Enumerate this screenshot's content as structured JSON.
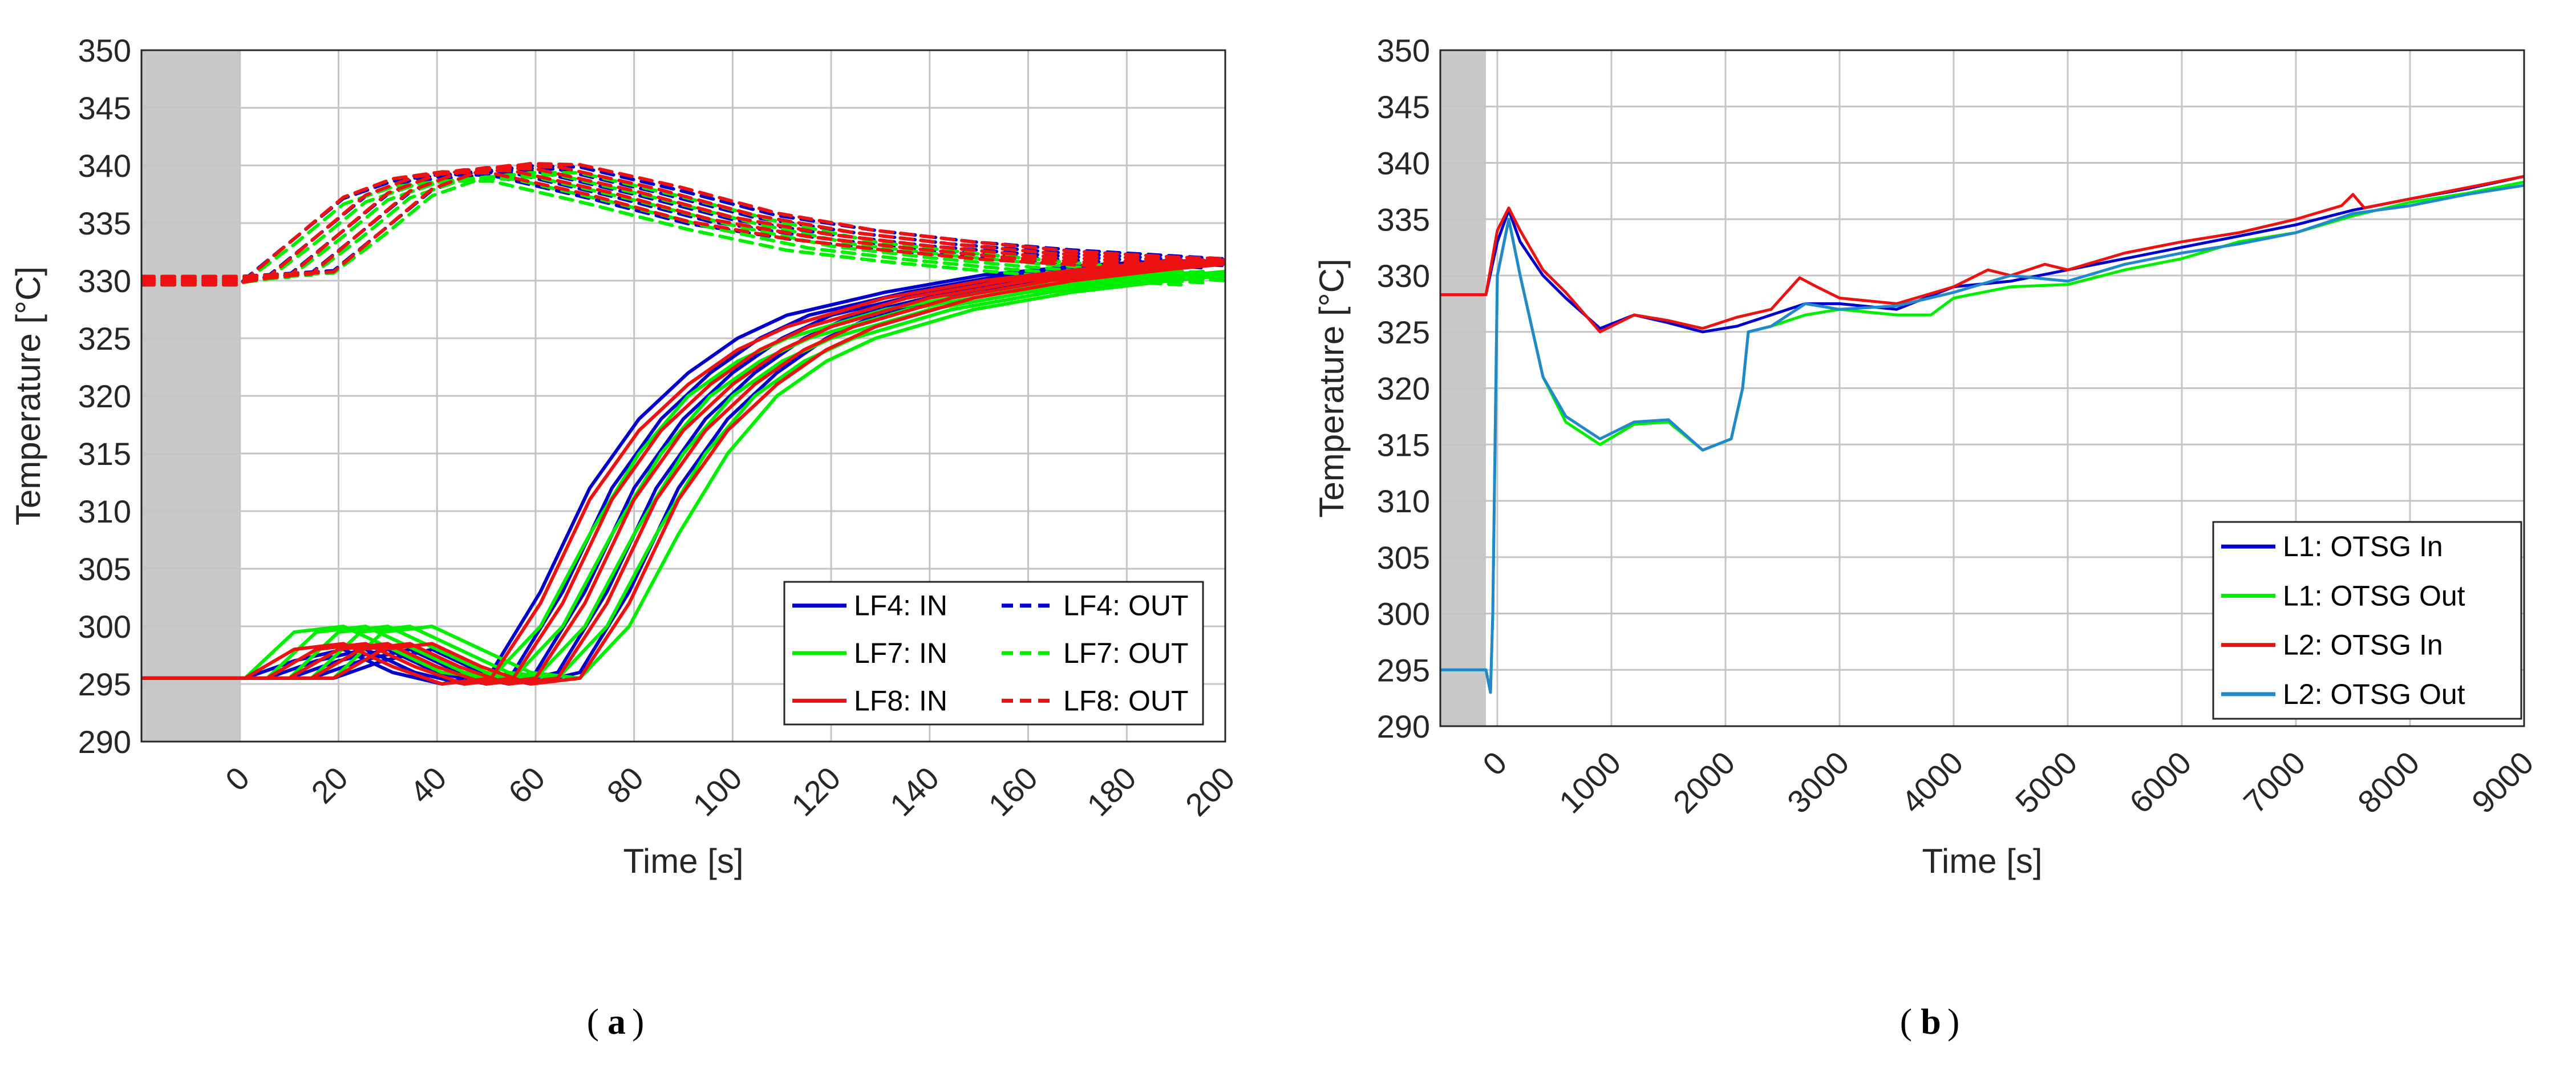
{
  "chart_data": [
    {
      "type": "line",
      "caption": "a",
      "xlabel": "Time [s]",
      "ylabel": "Temperature [°C]",
      "xlim": [
        -20,
        200
      ],
      "ylim": [
        290,
        350
      ],
      "xticks": [
        0,
        20,
        40,
        60,
        80,
        100,
        120,
        140,
        160,
        180,
        200
      ],
      "yticks": [
        290,
        295,
        300,
        305,
        310,
        315,
        320,
        325,
        330,
        335,
        340,
        345,
        350
      ],
      "shaded_region": [
        -20,
        0
      ],
      "grid": true,
      "legend_position": "bottom-right",
      "legend_layout": "two-columns",
      "series": [
        {
          "name": "LF4: IN",
          "color": "#0000cc",
          "dash": "solid",
          "x": [
            -20,
            0,
            10,
            20,
            30,
            40,
            50,
            60,
            70,
            80,
            90,
            100,
            110,
            120,
            140,
            160,
            180,
            200
          ],
          "y": [
            295.5,
            295.5,
            295.5,
            297,
            298,
            296,
            295,
            296,
            303,
            312,
            318,
            322,
            325,
            327,
            329,
            330.5,
            331.3,
            331.8
          ]
        },
        {
          "name": "LF4: OUT",
          "color": "#0000cc",
          "dash": "dashed",
          "x": [
            -20,
            0,
            10,
            20,
            30,
            40,
            50,
            60,
            80,
            100,
            120,
            140,
            160,
            180,
            200
          ],
          "y": [
            330,
            330,
            330.5,
            334,
            337.5,
            339,
            339.6,
            339.5,
            337.5,
            335.3,
            334,
            333,
            332.3,
            331.8,
            331.3
          ]
        },
        {
          "name": "LF7: IN",
          "color": "#00ee00",
          "dash": "solid",
          "x": [
            -20,
            0,
            10,
            20,
            30,
            40,
            50,
            60,
            70,
            80,
            90,
            100,
            110,
            120,
            140,
            160,
            180,
            200
          ],
          "y": [
            295.5,
            295.5,
            295.5,
            299.5,
            300,
            298,
            296,
            295.5,
            300,
            308,
            315,
            320,
            323,
            325,
            327.5,
            329,
            330,
            330.8
          ]
        },
        {
          "name": "LF7: OUT",
          "color": "#00ee00",
          "dash": "dashed",
          "x": [
            -20,
            0,
            10,
            20,
            30,
            40,
            50,
            60,
            80,
            100,
            120,
            140,
            160,
            180,
            200
          ],
          "y": [
            330,
            330,
            330.3,
            333.5,
            337,
            338.5,
            339,
            339,
            337,
            334.8,
            333,
            332,
            331.2,
            330.5,
            330
          ]
        },
        {
          "name": "LF8: IN",
          "color": "#ee1111",
          "dash": "solid",
          "x": [
            -20,
            0,
            10,
            20,
            30,
            40,
            50,
            60,
            70,
            80,
            90,
            100,
            110,
            120,
            140,
            160,
            180,
            200
          ],
          "y": [
            295.5,
            295.5,
            295.5,
            298,
            298.5,
            296.5,
            295,
            295.5,
            302,
            311,
            317,
            321,
            324,
            326,
            328.5,
            330,
            331,
            331.8
          ]
        },
        {
          "name": "LF8: OUT",
          "color": "#ee1111",
          "dash": "dashed",
          "x": [
            -20,
            0,
            10,
            20,
            30,
            40,
            50,
            60,
            80,
            100,
            120,
            140,
            160,
            180,
            200
          ],
          "y": [
            330,
            330,
            330.4,
            334,
            337.6,
            339.2,
            339.8,
            339.7,
            337.8,
            335.5,
            334,
            333,
            332.2,
            331.7,
            331.4
          ]
        }
      ]
    },
    {
      "type": "line",
      "caption": "b",
      "xlabel": "Time [s]",
      "ylabel": "Temperature [°C]",
      "xlim": [
        -500,
        9000
      ],
      "ylim": [
        290,
        350
      ],
      "xticks": [
        0,
        1000,
        2000,
        3000,
        4000,
        5000,
        6000,
        7000,
        8000,
        9000
      ],
      "yticks": [
        290,
        295,
        300,
        305,
        310,
        315,
        320,
        325,
        330,
        335,
        340,
        345,
        350
      ],
      "shaded_region": [
        -500,
        -100
      ],
      "grid": true,
      "legend_position": "bottom-right",
      "legend_layout": "one-column",
      "series": [
        {
          "name": "L1: OTSG In",
          "color": "#0000cc",
          "dash": "solid",
          "x": [
            -500,
            -100,
            0,
            100,
            200,
            400,
            600,
            900,
            1200,
            1500,
            1800,
            2100,
            2400,
            2700,
            3000,
            3500,
            4000,
            4500,
            5000,
            5500,
            6000,
            6500,
            7000,
            7500,
            8000,
            8500,
            9000
          ],
          "y": [
            328.3,
            328.3,
            333,
            335.8,
            333,
            330,
            328,
            325.3,
            326.5,
            325.8,
            325,
            325.5,
            326.5,
            327.5,
            327.5,
            327,
            329,
            329.5,
            330.5,
            331.5,
            332.5,
            333.5,
            334.5,
            335.8,
            336.8,
            337.7,
            338.8
          ]
        },
        {
          "name": "L1: OTSG Out",
          "color": "#00ee00",
          "dash": "solid",
          "x": [
            -500,
            -100,
            -60,
            -40,
            0,
            100,
            200,
            400,
            600,
            900,
            1200,
            1500,
            1800,
            2050,
            2150,
            2200,
            2400,
            2700,
            3000,
            3500,
            3800,
            4000,
            4500,
            5000,
            5500,
            6000,
            6500,
            7000,
            7500,
            8000,
            8500,
            9000
          ],
          "y": [
            295,
            295,
            293,
            300,
            330,
            335,
            330,
            321,
            317,
            315,
            316.8,
            317,
            314.5,
            315.5,
            320,
            325,
            325.5,
            326.5,
            327,
            326.5,
            326.5,
            328,
            329,
            329.2,
            330.5,
            331.5,
            333,
            333.8,
            335.3,
            336.5,
            337.3,
            338.3
          ]
        },
        {
          "name": "L2: OTSG In",
          "color": "#ee1111",
          "dash": "solid",
          "x": [
            -500,
            -100,
            0,
            100,
            200,
            400,
            600,
            900,
            1200,
            1500,
            1800,
            2100,
            2400,
            2650,
            2800,
            3000,
            3500,
            4000,
            4300,
            4500,
            4800,
            5000,
            5500,
            6000,
            6500,
            7000,
            7400,
            7500,
            7600,
            8000,
            8500,
            9000
          ],
          "y": [
            328.3,
            328.3,
            334,
            336,
            334,
            330.5,
            328.5,
            325,
            326.5,
            326,
            325.3,
            326.3,
            327,
            329.8,
            329,
            328,
            327.5,
            329,
            330.5,
            330,
            331,
            330.5,
            332,
            333,
            333.8,
            335,
            336.2,
            337.2,
            336,
            336.8,
            337.8,
            338.8
          ]
        },
        {
          "name": "L2: OTSG Out",
          "color": "#2288cc",
          "dash": "solid",
          "x": [
            -500,
            -100,
            -60,
            -40,
            0,
            100,
            200,
            400,
            600,
            900,
            1200,
            1500,
            1800,
            2050,
            2150,
            2200,
            2400,
            2700,
            3000,
            3500,
            4000,
            4500,
            5000,
            5500,
            6000,
            6500,
            7000,
            7500,
            8000,
            8500,
            9000
          ],
          "y": [
            295,
            295,
            293,
            300,
            330,
            335,
            330,
            321,
            317.5,
            315.5,
            317,
            317.2,
            314.5,
            315.5,
            320,
            325,
            325.5,
            327.5,
            327,
            327.3,
            328.5,
            330,
            329.5,
            331,
            332,
            332.8,
            333.8,
            335.5,
            336.2,
            337.2,
            338
          ]
        }
      ]
    }
  ]
}
